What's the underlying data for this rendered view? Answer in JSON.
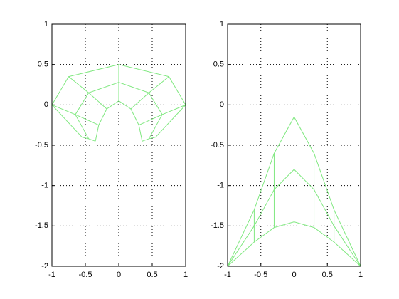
{
  "chart_data": [
    {
      "type": "mesh",
      "color": "#80e880",
      "grid": true,
      "xlim": [
        -1,
        1
      ],
      "ylim": [
        -2,
        1
      ],
      "xticks": [
        -1,
        -0.5,
        0,
        0.5,
        1
      ],
      "yticks": [
        -2,
        -1.5,
        -1,
        -0.5,
        0,
        0.5,
        1
      ],
      "rows": [
        {
          "x": [
            -0.55,
            -1,
            -0.75,
            0,
            0.75,
            1,
            0.55
          ],
          "y": [
            -0.4,
            0,
            0.35,
            0.5,
            0.35,
            0,
            -0.4
          ]
        },
        {
          "x": [
            -0.45,
            -0.65,
            -0.45,
            0,
            0.45,
            0.65,
            0.45
          ],
          "y": [
            -0.42,
            -0.12,
            0.15,
            0.28,
            0.15,
            -0.12,
            -0.42
          ]
        },
        {
          "x": [
            -0.35,
            -0.3,
            -0.18,
            0,
            0.18,
            0.3,
            0.35
          ],
          "y": [
            -0.45,
            -0.25,
            -0.05,
            0.05,
            -0.05,
            -0.25,
            -0.45
          ]
        }
      ]
    },
    {
      "type": "mesh",
      "color": "#80e880",
      "grid": true,
      "xlim": [
        -1,
        1
      ],
      "ylim": [
        -2,
        1
      ],
      "xticks": [
        -1,
        -0.5,
        0,
        0.5,
        1
      ],
      "yticks": [
        -2,
        -1.5,
        -1,
        -0.5,
        0,
        0.5,
        1
      ],
      "rows": [
        {
          "x": [
            -1,
            -0.6,
            -0.3,
            0,
            0.3,
            0.6,
            1
          ],
          "y": [
            -2,
            -1.3,
            -0.6,
            -0.15,
            -0.6,
            -1.3,
            -2
          ]
        },
        {
          "x": [
            -1,
            -0.6,
            -0.3,
            0,
            0.3,
            0.6,
            1
          ],
          "y": [
            -2,
            -1.5,
            -1.05,
            -0.8,
            -1.05,
            -1.5,
            -2
          ]
        },
        {
          "x": [
            -1,
            -0.6,
            -0.3,
            0,
            0.3,
            0.6,
            1
          ],
          "y": [
            -2,
            -1.7,
            -1.52,
            -1.45,
            -1.52,
            -1.7,
            -2
          ]
        }
      ]
    }
  ]
}
